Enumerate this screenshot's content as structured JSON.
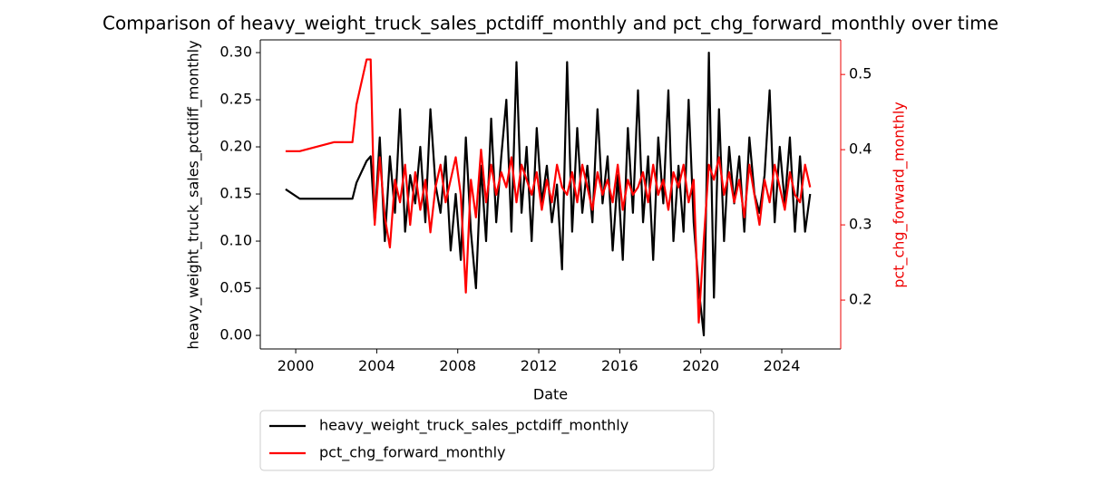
{
  "chart_data": {
    "type": "line",
    "title": "Comparison of heavy_weight_truck_sales_pctdiff_monthly and pct_chg_forward_monthly over time",
    "xlabel": "Date",
    "ylabel": "heavy_weight_truck_sales_pctdiff_monthly",
    "y2label": "pct_chg_forward_monthly",
    "x": [
      1999.5,
      2000.2,
      2001.9,
      2002.8,
      2003.0,
      2003.5,
      2003.7,
      2003.9,
      2004.15,
      2004.4,
      2004.65,
      2004.9,
      2005.15,
      2005.4,
      2005.65,
      2005.9,
      2006.15,
      2006.4,
      2006.65,
      2006.9,
      2007.15,
      2007.4,
      2007.65,
      2007.9,
      2008.15,
      2008.4,
      2008.65,
      2008.9,
      2009.15,
      2009.4,
      2009.65,
      2009.9,
      2010.15,
      2010.4,
      2010.65,
      2010.9,
      2011.15,
      2011.4,
      2011.65,
      2011.9,
      2012.15,
      2012.4,
      2012.65,
      2012.9,
      2013.15,
      2013.4,
      2013.65,
      2013.9,
      2014.15,
      2014.4,
      2014.65,
      2014.9,
      2015.15,
      2015.4,
      2015.65,
      2015.9,
      2016.15,
      2016.4,
      2016.65,
      2016.9,
      2017.15,
      2017.4,
      2017.65,
      2017.9,
      2018.15,
      2018.4,
      2018.65,
      2018.9,
      2019.15,
      2019.4,
      2019.65,
      2019.9,
      2020.15,
      2020.4,
      2020.65,
      2020.9,
      2021.15,
      2021.4,
      2021.65,
      2021.9,
      2022.15,
      2022.4,
      2022.65,
      2022.9,
      2023.15,
      2023.4,
      2023.65,
      2023.9,
      2024.15,
      2024.4,
      2024.65,
      2024.9,
      2025.15,
      2025.4
    ],
    "series": [
      {
        "name": "heavy_weight_truck_sales_pctdiff_monthly",
        "color": "#000000",
        "values": [
          0.155,
          0.145,
          0.145,
          0.145,
          0.162,
          0.185,
          0.19,
          0.12,
          0.21,
          0.1,
          0.19,
          0.13,
          0.24,
          0.11,
          0.17,
          0.14,
          0.2,
          0.12,
          0.24,
          0.16,
          0.13,
          0.19,
          0.09,
          0.15,
          0.08,
          0.21,
          0.11,
          0.05,
          0.18,
          0.1,
          0.23,
          0.12,
          0.19,
          0.25,
          0.11,
          0.29,
          0.13,
          0.2,
          0.1,
          0.22,
          0.14,
          0.18,
          0.12,
          0.16,
          0.07,
          0.29,
          0.11,
          0.22,
          0.13,
          0.18,
          0.12,
          0.24,
          0.14,
          0.19,
          0.09,
          0.17,
          0.08,
          0.22,
          0.13,
          0.26,
          0.12,
          0.19,
          0.08,
          0.21,
          0.14,
          0.26,
          0.1,
          0.18,
          0.11,
          0.25,
          0.12,
          0.05,
          0.0,
          0.3,
          0.04,
          0.24,
          0.1,
          0.2,
          0.14,
          0.19,
          0.11,
          0.21,
          0.15,
          0.13,
          0.17,
          0.26,
          0.12,
          0.2,
          0.14,
          0.21,
          0.11,
          0.19,
          0.11,
          0.15
        ]
      },
      {
        "name": "pct_chg_forward_monthly",
        "color": "#ff0000",
        "axis": "y2",
        "values": [
          0.398,
          0.398,
          0.41,
          0.41,
          0.46,
          0.52,
          0.52,
          0.3,
          0.39,
          0.31,
          0.27,
          0.36,
          0.33,
          0.38,
          0.3,
          0.37,
          0.32,
          0.36,
          0.29,
          0.35,
          0.38,
          0.33,
          0.36,
          0.39,
          0.34,
          0.21,
          0.36,
          0.31,
          0.4,
          0.33,
          0.38,
          0.34,
          0.37,
          0.35,
          0.39,
          0.33,
          0.38,
          0.36,
          0.34,
          0.37,
          0.32,
          0.36,
          0.33,
          0.38,
          0.35,
          0.34,
          0.37,
          0.33,
          0.38,
          0.35,
          0.32,
          0.37,
          0.34,
          0.36,
          0.33,
          0.38,
          0.32,
          0.36,
          0.34,
          0.35,
          0.37,
          0.33,
          0.38,
          0.34,
          0.36,
          0.32,
          0.37,
          0.35,
          0.38,
          0.33,
          0.36,
          0.17,
          0.28,
          0.38,
          0.36,
          0.39,
          0.34,
          0.37,
          0.33,
          0.36,
          0.31,
          0.38,
          0.34,
          0.3,
          0.36,
          0.33,
          0.38,
          0.35,
          0.32,
          0.37,
          0.34,
          0.33,
          0.38,
          0.35
        ]
      }
    ],
    "xlim": [
      1998.25,
      2026.91
    ],
    "xticks": [
      2000,
      2004,
      2008,
      2012,
      2016,
      2020,
      2024
    ],
    "ylim": [
      -0.0144,
      0.3135
    ],
    "yticks": [
      {
        "value": 0,
        "label": "0.00"
      },
      {
        "value": 0.05,
        "label": "0.05"
      },
      {
        "value": 0.1,
        "label": "0.10"
      },
      {
        "value": 0.15,
        "label": "0.15"
      },
      {
        "value": 0.2,
        "label": "0.20"
      },
      {
        "value": 0.25,
        "label": "0.25"
      },
      {
        "value": 0.3,
        "label": "0.30"
      }
    ],
    "y2lim": [
      0.135,
      0.546
    ],
    "y2ticks": [
      0.2,
      0.3,
      0.4,
      0.5
    ]
  }
}
